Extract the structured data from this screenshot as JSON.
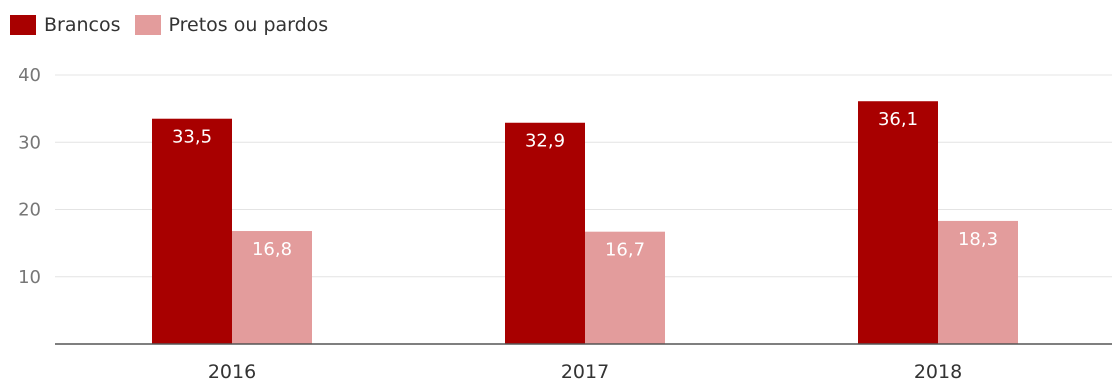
{
  "chart_data": {
    "type": "bar",
    "categories": [
      "2016",
      "2017",
      "2018"
    ],
    "series": [
      {
        "name": "Brancos",
        "values": [
          33.5,
          32.9,
          36.1
        ],
        "labels": [
          "33,5",
          "32,9",
          "36,1"
        ],
        "color": "#a80000"
      },
      {
        "name": "Pretos ou pardos",
        "values": [
          16.8,
          16.7,
          18.3
        ],
        "labels": [
          "16,8",
          "16,7",
          "18,3"
        ],
        "color": "#e39c9c"
      }
    ],
    "y_ticks": [
      10,
      20,
      30,
      40
    ],
    "ylim": [
      0,
      40
    ],
    "grid": true,
    "legend_position": "top-left",
    "title": "",
    "xlabel": "",
    "ylabel": ""
  }
}
